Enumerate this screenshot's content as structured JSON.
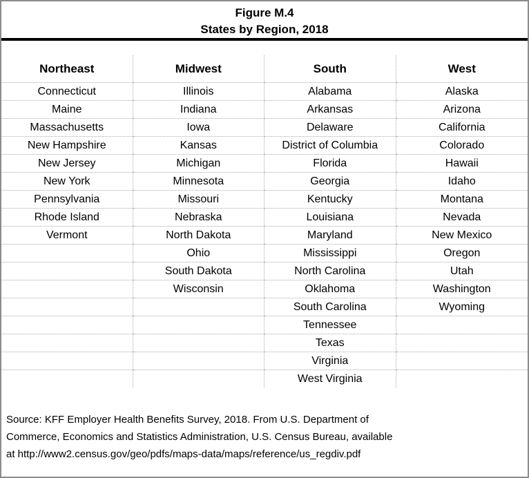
{
  "figure": {
    "title_line1": "Figure M.4",
    "title_line2": "States by Region, 2018"
  },
  "table": {
    "row_count": 17,
    "regions": [
      {
        "name": "Northeast",
        "states": [
          "Connecticut",
          "Maine",
          "Massachusetts",
          "New Hampshire",
          "New Jersey",
          "New York",
          "Pennsylvania",
          "Rhode Island",
          "Vermont"
        ]
      },
      {
        "name": "Midwest",
        "states": [
          "Illinois",
          "Indiana",
          "Iowa",
          "Kansas",
          "Michigan",
          "Minnesota",
          "Missouri",
          "Nebraska",
          "North Dakota",
          "Ohio",
          "South Dakota",
          "Wisconsin"
        ]
      },
      {
        "name": "South",
        "states": [
          "Alabama",
          "Arkansas",
          "Delaware",
          "District of Columbia",
          "Florida",
          "Georgia",
          "Kentucky",
          "Louisiana",
          "Maryland",
          "Mississippi",
          "North Carolina",
          "Oklahoma",
          "South Carolina",
          "Tennessee",
          "Texas",
          "Virginia",
          "West Virginia"
        ]
      },
      {
        "name": "West",
        "states": [
          "Alaska",
          "Arizona",
          "California",
          "Colorado",
          "Hawaii",
          "Idaho",
          "Montana",
          "Nevada",
          "New Mexico",
          "Oregon",
          "Utah",
          "Washington",
          "Wyoming"
        ]
      }
    ]
  },
  "source": {
    "lines": [
      "Source: KFF Employer Health Benefits Survey, 2018. From U.S. Department of",
      "Commerce, Economics and Statistics Administration, U.S. Census Bureau, available",
      "at http://www2.census.gov/geo/pdfs/maps-data/maps/reference/us_regdiv.pdf"
    ]
  },
  "colors": {
    "text": "#000000",
    "outer_border": "#8c8c8c",
    "title_rule": "#000000",
    "dotted_grid": "#a9a9a9",
    "background": "#ffffff"
  }
}
